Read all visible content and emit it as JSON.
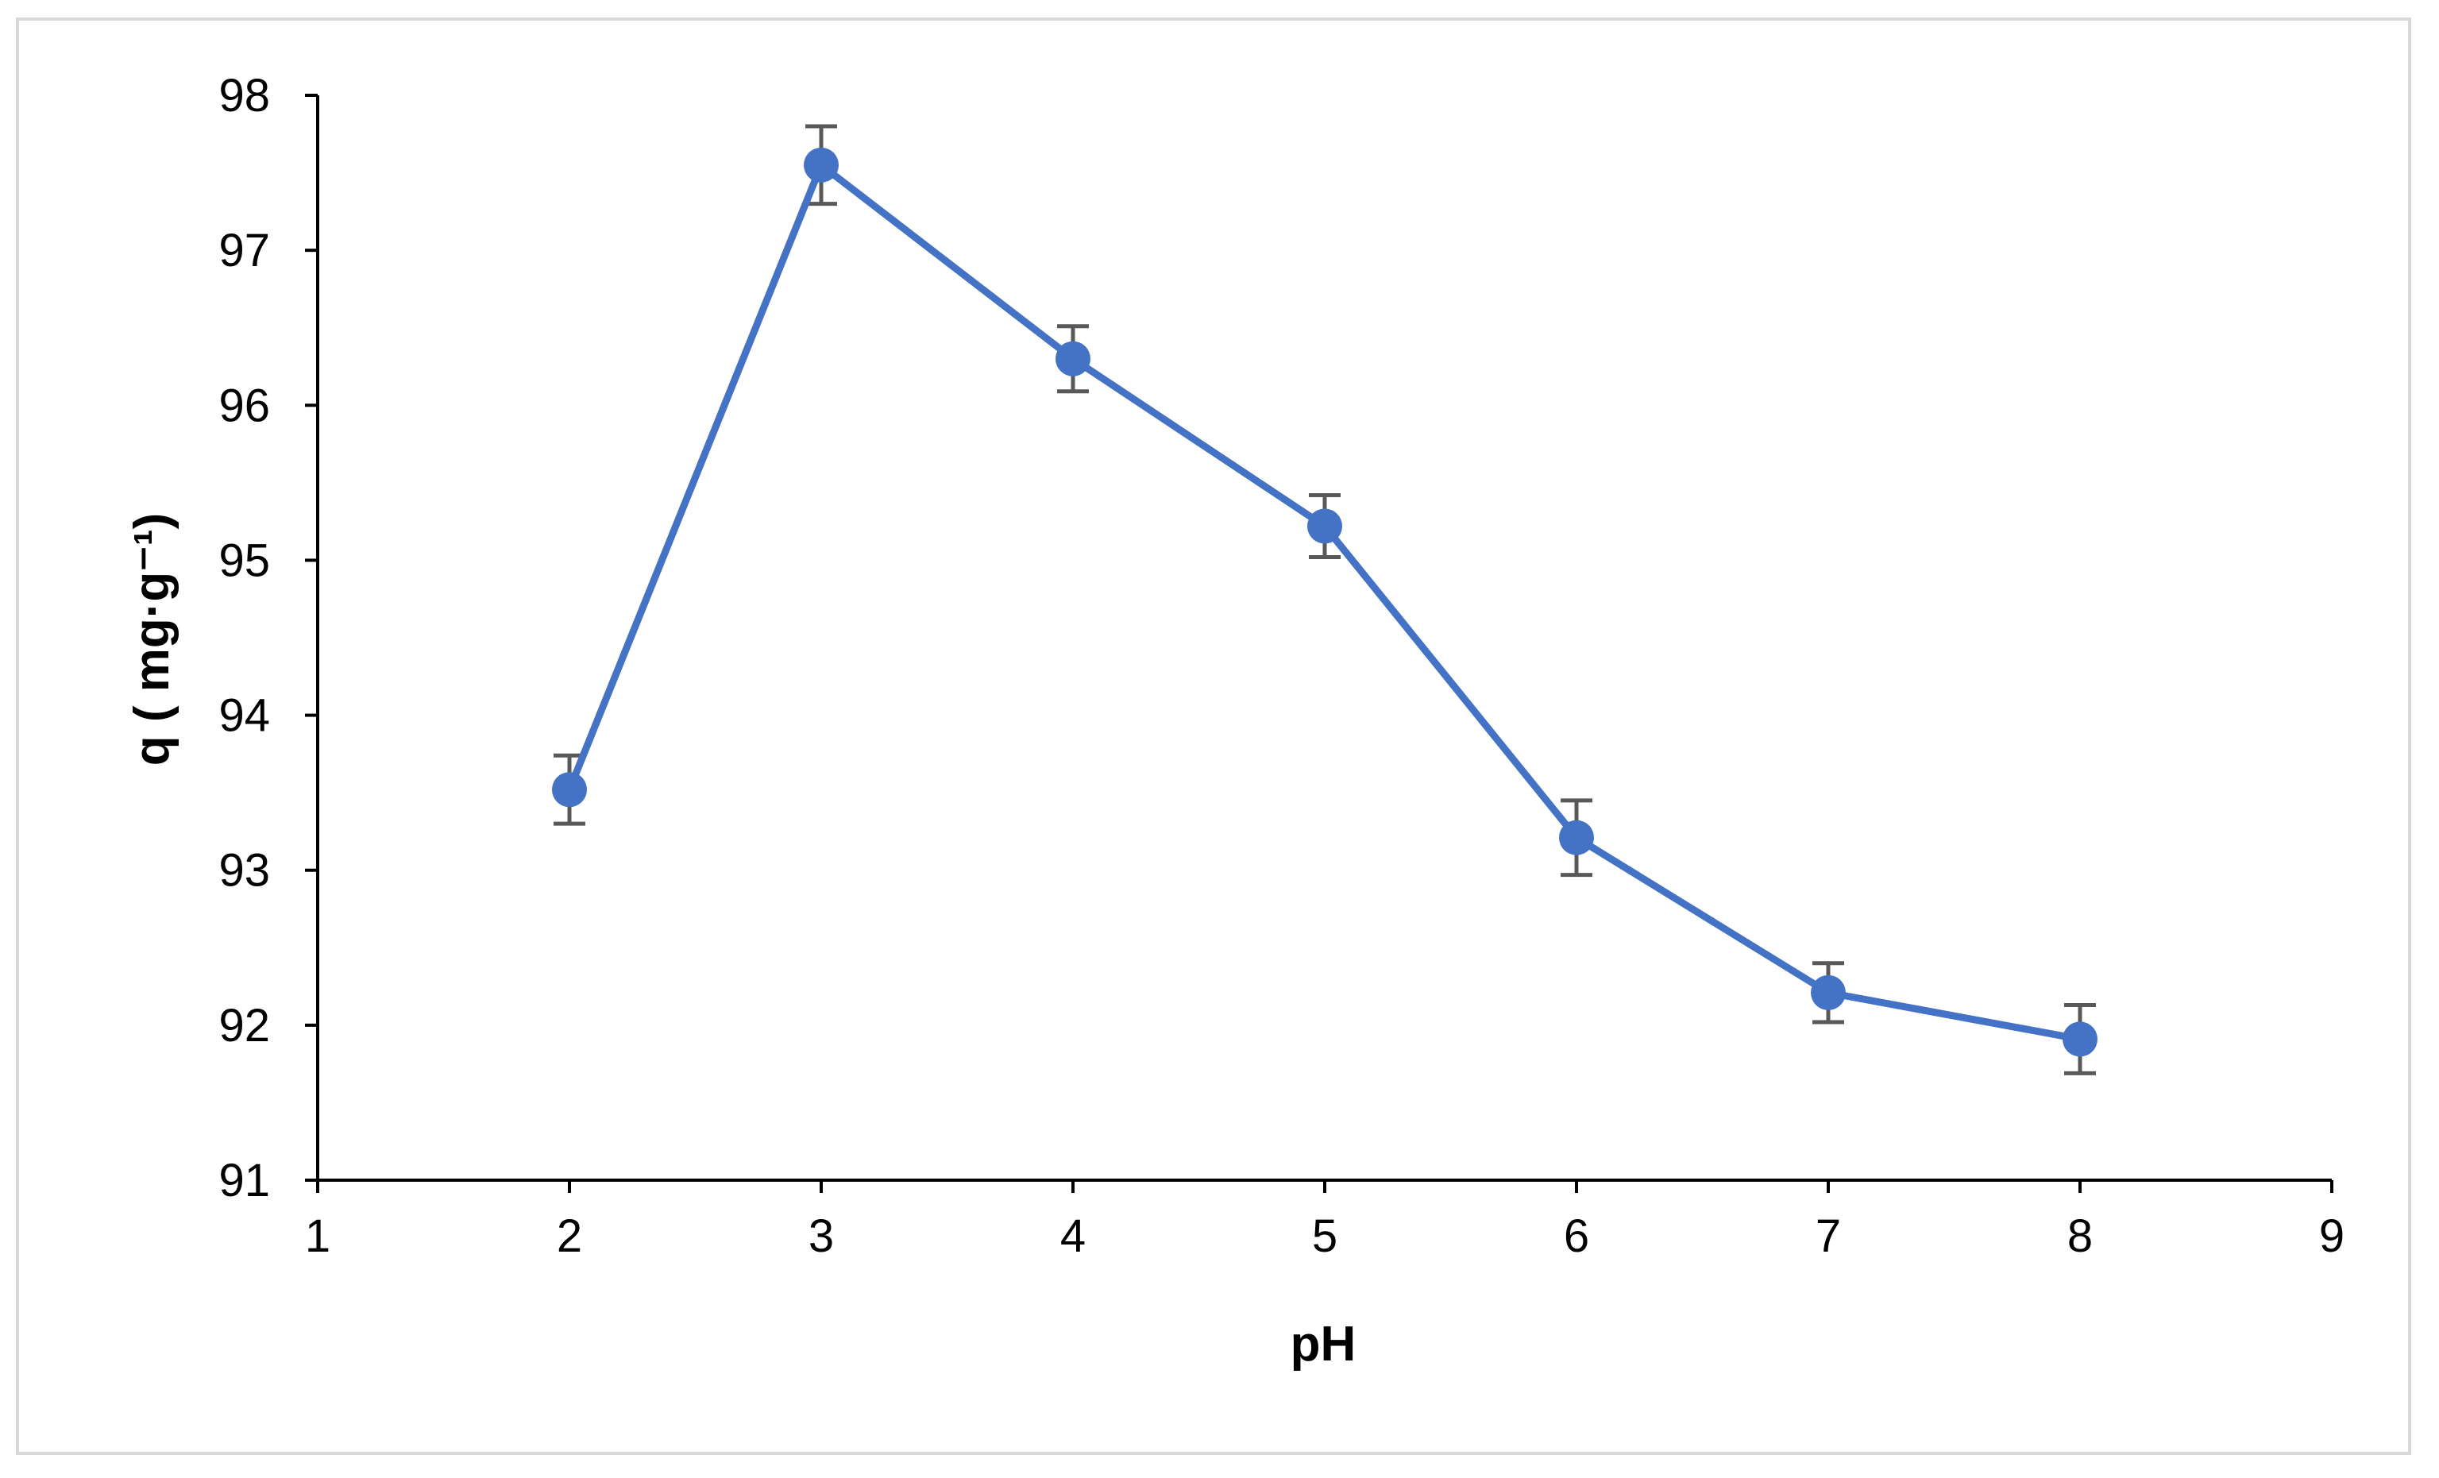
{
  "chart_data": {
    "type": "line",
    "title": "",
    "xlabel": "pH",
    "ylabel": "q ( mg·g⁻¹)",
    "xlim": [
      1,
      9
    ],
    "ylim": [
      91,
      98
    ],
    "xticks": [
      1,
      2,
      3,
      4,
      5,
      6,
      7,
      8,
      9
    ],
    "yticks": [
      91,
      92,
      93,
      94,
      95,
      96,
      97,
      98
    ],
    "grid": false,
    "legend": "none",
    "series": [
      {
        "x": [
          2,
          3,
          4,
          5,
          6,
          7,
          8
        ],
        "values": [
          93.52,
          97.55,
          96.3,
          95.22,
          93.21,
          92.21,
          91.91
        ],
        "error": [
          0.22,
          0.25,
          0.21,
          0.2,
          0.24,
          0.19,
          0.22
        ],
        "color": "#4472c4"
      }
    ]
  },
  "colors": {
    "series": "#4472c4",
    "error_bars": "#595959",
    "axis": "#000000",
    "frame": "#d9d9d9"
  }
}
